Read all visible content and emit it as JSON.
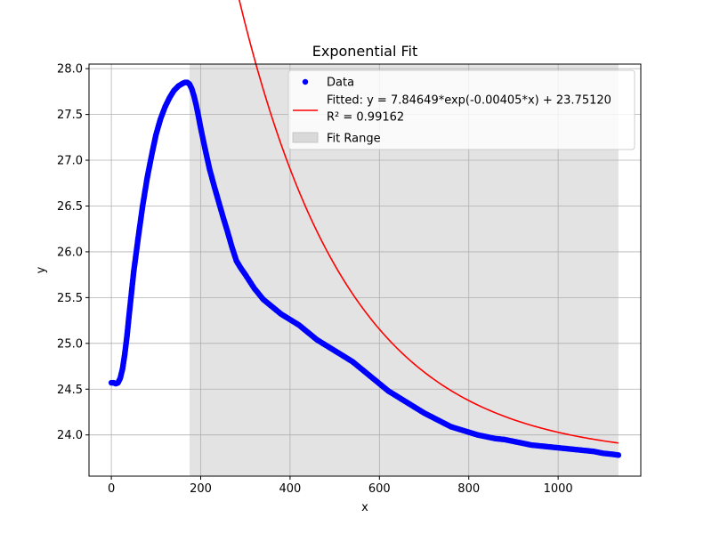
{
  "chart_data": {
    "type": "scatter",
    "title": "Exponential Fit",
    "xlabel": "x",
    "ylabel": "y",
    "xlim": [
      -50,
      1185
    ],
    "ylim": [
      23.55,
      28.05
    ],
    "xticks": [
      0,
      200,
      400,
      600,
      800,
      1000
    ],
    "yticks": [
      24.0,
      24.5,
      25.0,
      25.5,
      26.0,
      26.5,
      27.0,
      27.5,
      28.0
    ],
    "grid": true,
    "legend_position": "top-right",
    "fit_range": [
      175,
      1135
    ],
    "series": [
      {
        "name": "Data",
        "kind": "scatter",
        "color": "#0000ff",
        "x": [
          0,
          5,
          10,
          15,
          20,
          25,
          30,
          35,
          40,
          45,
          50,
          60,
          70,
          80,
          90,
          100,
          110,
          120,
          130,
          140,
          150,
          160,
          165,
          170,
          175,
          180,
          185,
          190,
          195,
          200,
          210,
          220,
          230,
          240,
          250,
          260,
          270,
          280,
          290,
          300,
          320,
          340,
          360,
          380,
          400,
          420,
          440,
          460,
          480,
          500,
          520,
          540,
          560,
          580,
          600,
          620,
          640,
          660,
          680,
          700,
          720,
          740,
          760,
          780,
          800,
          820,
          840,
          860,
          880,
          900,
          920,
          940,
          960,
          980,
          1000,
          1020,
          1040,
          1060,
          1080,
          1100,
          1120,
          1135
        ],
        "y": [
          24.57,
          24.57,
          24.56,
          24.57,
          24.62,
          24.72,
          24.88,
          25.08,
          25.32,
          25.55,
          25.78,
          26.15,
          26.5,
          26.8,
          27.05,
          27.28,
          27.45,
          27.58,
          27.68,
          27.76,
          27.81,
          27.84,
          27.85,
          27.85,
          27.83,
          27.78,
          27.7,
          27.6,
          27.48,
          27.35,
          27.12,
          26.9,
          26.72,
          26.55,
          26.38,
          26.22,
          26.05,
          25.9,
          25.82,
          25.75,
          25.6,
          25.48,
          25.4,
          25.32,
          25.26,
          25.2,
          25.12,
          25.04,
          24.98,
          24.92,
          24.86,
          24.8,
          24.72,
          24.64,
          24.56,
          24.48,
          24.42,
          24.36,
          24.3,
          24.24,
          24.19,
          24.14,
          24.09,
          24.06,
          24.03,
          24.0,
          23.98,
          23.96,
          23.95,
          23.93,
          23.91,
          23.89,
          23.88,
          23.87,
          23.86,
          23.85,
          23.84,
          23.83,
          23.82,
          23.8,
          23.79,
          23.78
        ]
      },
      {
        "name": "Fitted: y = 7.84649*exp(-0.00405*x) + 23.75120",
        "kind": "line",
        "color": "#ff0000",
        "fit": {
          "a": 7.84649,
          "b": -0.00405,
          "c": 23.7512,
          "x0": 175
        },
        "x_range": [
          175,
          1135
        ]
      }
    ],
    "legend": [
      {
        "label": "Data",
        "marker": "dot",
        "color": "#0000ff"
      },
      {
        "label": "Fitted: y = 7.84649*exp(-0.00405*x) + 23.75120",
        "marker": "line",
        "color": "#ff0000"
      },
      {
        "label": "R² = 0.99162",
        "marker": "none"
      },
      {
        "label": "Fit Range",
        "marker": "box",
        "color": "#d9d9d9"
      }
    ]
  }
}
